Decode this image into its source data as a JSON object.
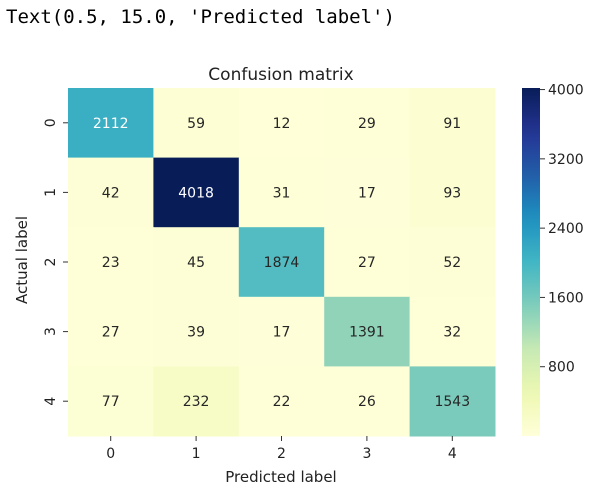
{
  "output_text": "Text(0.5, 15.0, 'Predicted label')",
  "chart_data": {
    "type": "heatmap",
    "title": "Confusion matrix",
    "xlabel": "Predicted label",
    "ylabel": "Actual label",
    "x_categories": [
      "0",
      "1",
      "2",
      "3",
      "4"
    ],
    "y_categories": [
      "0",
      "1",
      "2",
      "3",
      "4"
    ],
    "values": [
      [
        2112,
        59,
        12,
        29,
        91
      ],
      [
        42,
        4018,
        31,
        17,
        93
      ],
      [
        23,
        45,
        1874,
        27,
        52
      ],
      [
        27,
        39,
        17,
        1391,
        32
      ],
      [
        77,
        232,
        22,
        26,
        1543
      ]
    ],
    "colormap": "YlGnBu",
    "colorbar_ticks": [
      800,
      1600,
      2400,
      3200,
      4000
    ],
    "colorbar_range": [
      0,
      4018
    ],
    "annotate": true
  }
}
